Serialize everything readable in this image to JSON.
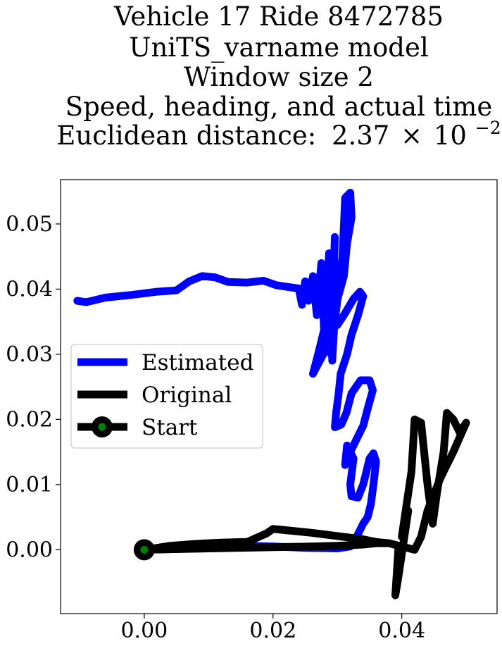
{
  "chart_data": {
    "type": "line",
    "title_lines": [
      "Vehicle 17 Ride 8472785",
      "UniTS_varname model",
      "Window size 2",
      "Speed, heading, and actual time"
    ],
    "metric_label": "Euclidean distance:",
    "metric_mantissa": "2.37",
    "metric_times": "×",
    "metric_base": "10",
    "metric_exponent": "−2",
    "xlabel": "",
    "ylabel": "",
    "xlim": [
      -0.013,
      0.0548
    ],
    "ylim": [
      -0.0098,
      0.0568
    ],
    "x_ticks": [
      0.0,
      0.02,
      0.04
    ],
    "x_tick_labels": [
      "0.00",
      "0.02",
      "0.04"
    ],
    "y_ticks": [
      0.0,
      0.01,
      0.02,
      0.03,
      0.04,
      0.05
    ],
    "y_tick_labels": [
      "0.00",
      "0.01",
      "0.02",
      "0.03",
      "0.04",
      "0.05"
    ],
    "grid": false,
    "legend_position": "center-left",
    "series": [
      {
        "name": "Estimated",
        "color": "#0000ff",
        "points": [
          [
            -0.0104,
            0.0382
          ],
          [
            -0.009,
            0.038
          ],
          [
            -0.006,
            0.0387
          ],
          [
            -0.002,
            0.0391
          ],
          [
            0.002,
            0.0396
          ],
          [
            0.005,
            0.0398
          ],
          [
            0.007,
            0.0412
          ],
          [
            0.009,
            0.042
          ],
          [
            0.011,
            0.0418
          ],
          [
            0.013,
            0.0411
          ],
          [
            0.016,
            0.041
          ],
          [
            0.0185,
            0.0413
          ],
          [
            0.0205,
            0.0406
          ],
          [
            0.0225,
            0.0403
          ],
          [
            0.024,
            0.0401
          ],
          [
            0.0245,
            0.0376
          ],
          [
            0.025,
            0.0412
          ],
          [
            0.0255,
            0.0382
          ],
          [
            0.0262,
            0.042
          ],
          [
            0.0268,
            0.036
          ],
          [
            0.0275,
            0.044
          ],
          [
            0.028,
            0.032
          ],
          [
            0.0287,
            0.0455
          ],
          [
            0.0292,
            0.029
          ],
          [
            0.03,
            0.043
          ],
          [
            0.0292,
            0.035
          ],
          [
            0.0296,
            0.048
          ],
          [
            0.029,
            0.03
          ],
          [
            0.0308,
            0.045
          ],
          [
            0.0312,
            0.054
          ],
          [
            0.032,
            0.0548
          ],
          [
            0.0322,
            0.051
          ],
          [
            0.0315,
            0.047
          ],
          [
            0.031,
            0.042
          ],
          [
            0.0296,
            0.037
          ],
          [
            0.028,
            0.034
          ],
          [
            0.027,
            0.03
          ],
          [
            0.0262,
            0.027
          ],
          [
            0.0278,
            0.03
          ],
          [
            0.029,
            0.034
          ],
          [
            0.03,
            0.0345
          ],
          [
            0.031,
            0.036
          ],
          [
            0.0325,
            0.0385
          ],
          [
            0.0335,
            0.0396
          ],
          [
            0.034,
            0.0389
          ],
          [
            0.0332,
            0.036
          ],
          [
            0.0322,
            0.033
          ],
          [
            0.0315,
            0.03
          ],
          [
            0.0305,
            0.027
          ],
          [
            0.0302,
            0.024
          ],
          [
            0.0298,
            0.021
          ],
          [
            0.0296,
            0.0188
          ],
          [
            0.0306,
            0.0192
          ],
          [
            0.0314,
            0.021
          ],
          [
            0.0322,
            0.024
          ],
          [
            0.0336,
            0.026
          ],
          [
            0.035,
            0.026
          ],
          [
            0.0355,
            0.0245
          ],
          [
            0.0348,
            0.022
          ],
          [
            0.034,
            0.019
          ],
          [
            0.033,
            0.017
          ],
          [
            0.032,
            0.015
          ],
          [
            0.0312,
            0.013
          ],
          [
            0.0315,
            0.016
          ],
          [
            0.0325,
            0.014
          ],
          [
            0.032,
            0.01
          ],
          [
            0.0322,
            0.0082
          ],
          [
            0.0332,
            0.008
          ],
          [
            0.034,
            0.01
          ],
          [
            0.0345,
            0.012
          ],
          [
            0.035,
            0.014
          ],
          [
            0.0356,
            0.0148
          ],
          [
            0.036,
            0.0135
          ],
          [
            0.0356,
            0.01
          ],
          [
            0.0352,
            0.007
          ],
          [
            0.0347,
            0.005
          ],
          [
            0.034,
            0.004
          ],
          [
            0.033,
            0.002
          ],
          [
            0.032,
            0.0005
          ],
          [
            0.03,
            0.0002
          ],
          [
            0.025,
            0.0003
          ],
          [
            0.02,
            0.0005
          ],
          [
            0.015,
            0.0006
          ],
          [
            0.01,
            0.0003
          ],
          [
            0.005,
            0.0001
          ],
          [
            0.0,
            0.0
          ]
        ]
      },
      {
        "name": "Original",
        "color": "#000000",
        "points": [
          [
            0.0,
            0.0
          ],
          [
            0.004,
            0.0006
          ],
          [
            0.008,
            0.0009
          ],
          [
            0.012,
            0.0011
          ],
          [
            0.016,
            0.0012
          ],
          [
            0.019,
            0.0025
          ],
          [
            0.02,
            0.0032
          ],
          [
            0.022,
            0.003
          ],
          [
            0.026,
            0.0026
          ],
          [
            0.03,
            0.0021
          ],
          [
            0.034,
            0.0016
          ],
          [
            0.036,
            0.0012
          ],
          [
            0.038,
            0.001
          ],
          [
            0.0395,
            0.0006
          ],
          [
            0.039,
            -0.007
          ],
          [
            0.0395,
            -0.004
          ],
          [
            0.041,
            0.006
          ],
          [
            0.04,
            0.002
          ],
          [
            0.0415,
            0.012
          ],
          [
            0.042,
            0.02
          ],
          [
            0.043,
            0.0195
          ],
          [
            0.044,
            0.01
          ],
          [
            0.0448,
            0.004
          ],
          [
            0.0455,
            0.009
          ],
          [
            0.0465,
            0.015
          ],
          [
            0.047,
            0.021
          ],
          [
            0.048,
            0.02
          ],
          [
            0.049,
            0.018
          ],
          [
            0.05,
            0.0195
          ],
          [
            0.048,
            0.015
          ],
          [
            0.046,
            0.011
          ],
          [
            0.044,
            0.006
          ],
          [
            0.043,
            0.002
          ],
          [
            0.042,
            0.0
          ],
          [
            0.04,
            0.0005
          ],
          [
            0.038,
            0.001
          ],
          [
            0.036,
            0.001
          ],
          [
            0.034,
            0.0008
          ],
          [
            0.03,
            0.0006
          ],
          [
            0.026,
            0.0005
          ],
          [
            0.02,
            0.0004
          ],
          [
            0.015,
            0.0003
          ],
          [
            0.01,
            0.0002
          ],
          [
            0.005,
            0.0001
          ],
          [
            0.0,
            0.0
          ]
        ]
      },
      {
        "name": "Start",
        "color": "#000000",
        "marker_face": "#008000",
        "points": [
          [
            0.0,
            0.0
          ]
        ]
      }
    ]
  }
}
